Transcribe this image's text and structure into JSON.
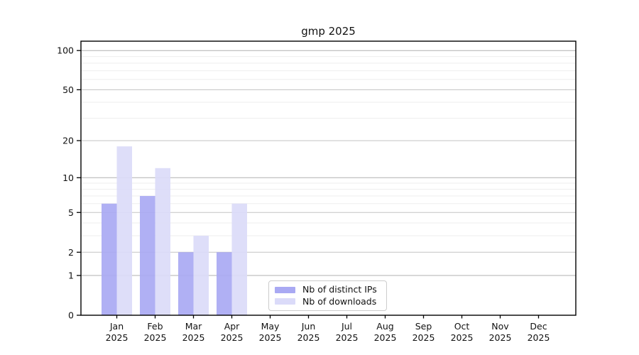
{
  "figure": {
    "title": "gmp 2025"
  },
  "chart_data": {
    "type": "bar",
    "title": "gmp 2025",
    "categories": [
      "Jan",
      "Feb",
      "Mar",
      "Apr",
      "May",
      "Jun",
      "Jul",
      "Aug",
      "Sep",
      "Oct",
      "Nov",
      "Dec"
    ],
    "category_year_label": "2025",
    "series": [
      {
        "name": "Nb of distinct IPs",
        "color": "#a9a9f3",
        "values": [
          6,
          7,
          2,
          2,
          0,
          0,
          0,
          0,
          0,
          0,
          0,
          0
        ]
      },
      {
        "name": "Nb of downloads",
        "color": "#dbdbf9",
        "values": [
          18,
          12,
          3,
          6,
          0,
          0,
          0,
          0,
          0,
          0,
          0,
          0
        ]
      }
    ],
    "yscale": "log1p",
    "ylim": [
      0,
      100
    ],
    "yticks": [
      0,
      1,
      2,
      5,
      10,
      20,
      50,
      100
    ],
    "minor_gridlines": [
      3,
      4,
      6,
      7,
      8,
      9,
      30,
      40,
      60,
      70,
      80,
      90
    ],
    "grid": true,
    "legend_position": "lower center",
    "colors": {
      "axis": "#000000",
      "major_grid": "#c3c3c3",
      "emph_grid": "#b0b0b0",
      "minor_grid": "#eeeeee",
      "text": "#111111"
    }
  }
}
